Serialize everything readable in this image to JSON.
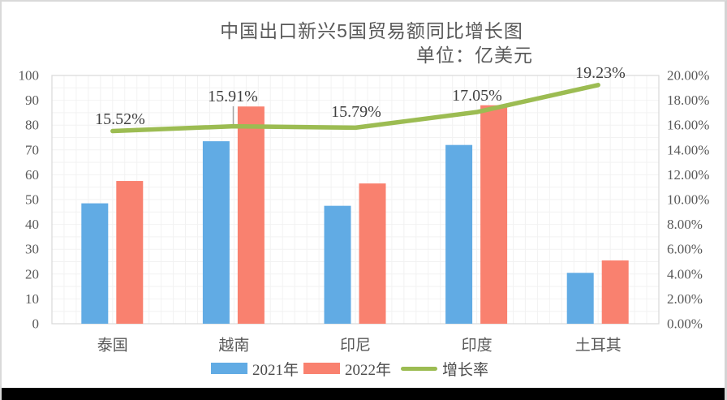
{
  "title": {
    "line1": "中国出口新兴5国贸易额同比增长图",
    "line2": "单位：亿美元",
    "color": "#595959"
  },
  "chart_data": {
    "type": "bar+line combo",
    "categories": [
      "泰国",
      "越南",
      "印尼",
      "印度",
      "土耳其"
    ],
    "series": [
      {
        "name": "2021年",
        "type": "bar",
        "axis": "left",
        "color": "#61ABE4",
        "values": [
          48.5,
          73.5,
          47.5,
          72,
          20.5
        ]
      },
      {
        "name": "2022年",
        "type": "bar",
        "axis": "left",
        "color": "#F9816F",
        "values": [
          57.5,
          87.5,
          56.5,
          88,
          25.5
        ]
      },
      {
        "name": "增长率",
        "type": "line",
        "axis": "right",
        "color": "#9CBC52",
        "values": [
          15.52,
          15.91,
          15.79,
          17.05,
          19.23
        ],
        "labels": [
          "15.52%",
          "15.91%",
          "15.79%",
          "17.05%",
          "19.23%"
        ]
      }
    ],
    "left_axis": {
      "min": 0,
      "max": 100,
      "step": 10,
      "ticks": [
        "100",
        "90",
        "80",
        "70",
        "60",
        "50",
        "40",
        "30",
        "20",
        "10",
        "0"
      ]
    },
    "right_axis": {
      "min": 0,
      "max": 20,
      "step": 2,
      "ticks": [
        "20.00%",
        "18.00%",
        "16.00%",
        "14.00%",
        "12.00%",
        "10.00%",
        "8.00%",
        "6.00%",
        "4.00%",
        "2.00%",
        "0.00%"
      ]
    },
    "grid": true,
    "legend_position": "bottom-center"
  },
  "legend": {
    "items": [
      {
        "label": "2021年",
        "color": "#61ABE4",
        "shape": "rect"
      },
      {
        "label": "2022年",
        "color": "#F9816F",
        "shape": "rect"
      },
      {
        "label": "增长率",
        "color": "#9CBC52",
        "shape": "line"
      }
    ]
  },
  "colors": {
    "grid": "#F2F2F2",
    "plot_border": "#D9D9D9",
    "axis_text": "#595959",
    "category_text": "#595959",
    "data_label_text": "#3F3F3F",
    "leader_line": "#A6A6A6",
    "frame_border": "#D9D9D9",
    "bottom_bar": "#000000"
  }
}
